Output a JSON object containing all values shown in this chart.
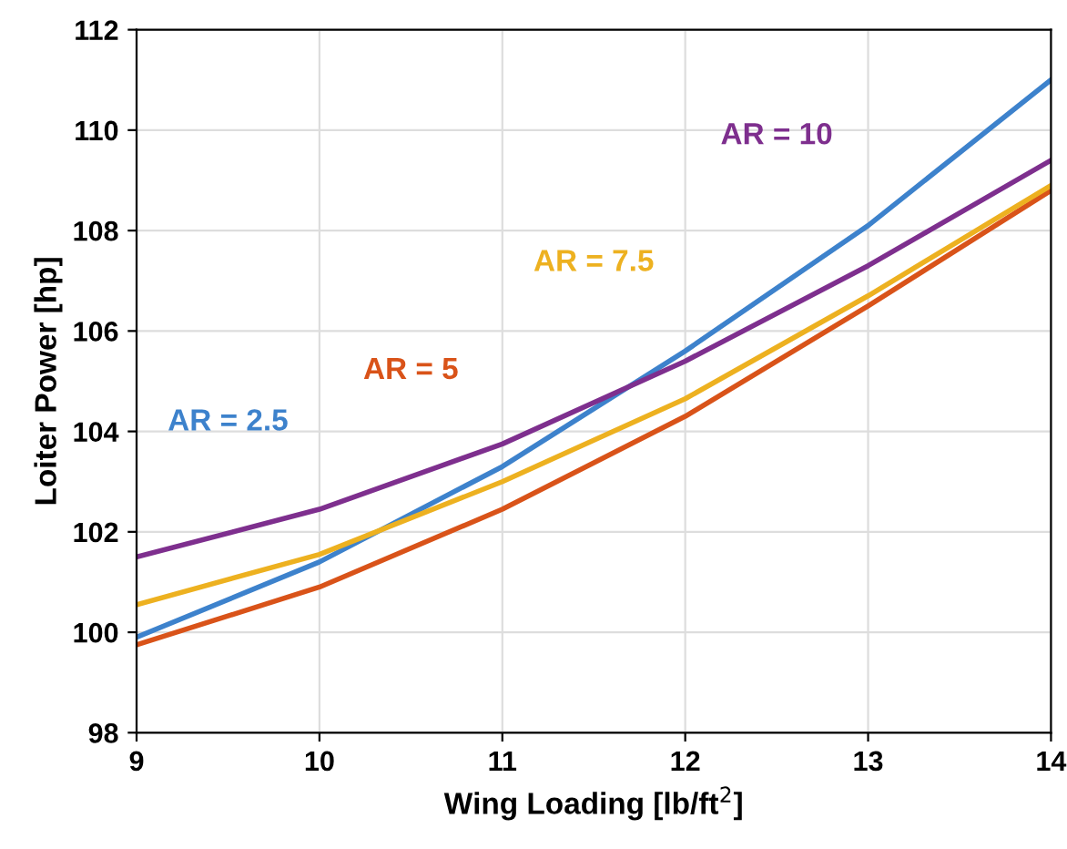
{
  "chart_data": {
    "type": "line",
    "xlabel": "Wing Loading [lb/ft$^{2}$]",
    "ylabel": "Loiter Power [hp]",
    "x": [
      9,
      10,
      11,
      12,
      13,
      14
    ],
    "series": [
      {
        "name": "AR = 2.5",
        "color": "#3d82cc",
        "values": [
          99.9,
          101.4,
          103.3,
          105.6,
          108.1,
          111.0
        ]
      },
      {
        "name": "AR = 5",
        "color": "#d95319",
        "values": [
          99.75,
          100.9,
          102.45,
          104.3,
          106.5,
          108.8
        ]
      },
      {
        "name": "AR = 7.5",
        "color": "#edb120",
        "values": [
          100.55,
          101.55,
          103.0,
          104.65,
          106.7,
          108.9
        ]
      },
      {
        "name": "AR = 10",
        "color": "#7e2f8e",
        "values": [
          101.5,
          102.45,
          103.75,
          105.4,
          107.3,
          109.4
        ]
      }
    ],
    "xlim": [
      9,
      14
    ],
    "ylim": [
      98,
      112
    ],
    "xticks": [
      9,
      10,
      11,
      12,
      13,
      14
    ],
    "yticks": [
      98,
      100,
      102,
      104,
      106,
      108,
      110,
      112
    ],
    "grid": true,
    "legend": false,
    "marker": "none",
    "line_style": "solid"
  }
}
